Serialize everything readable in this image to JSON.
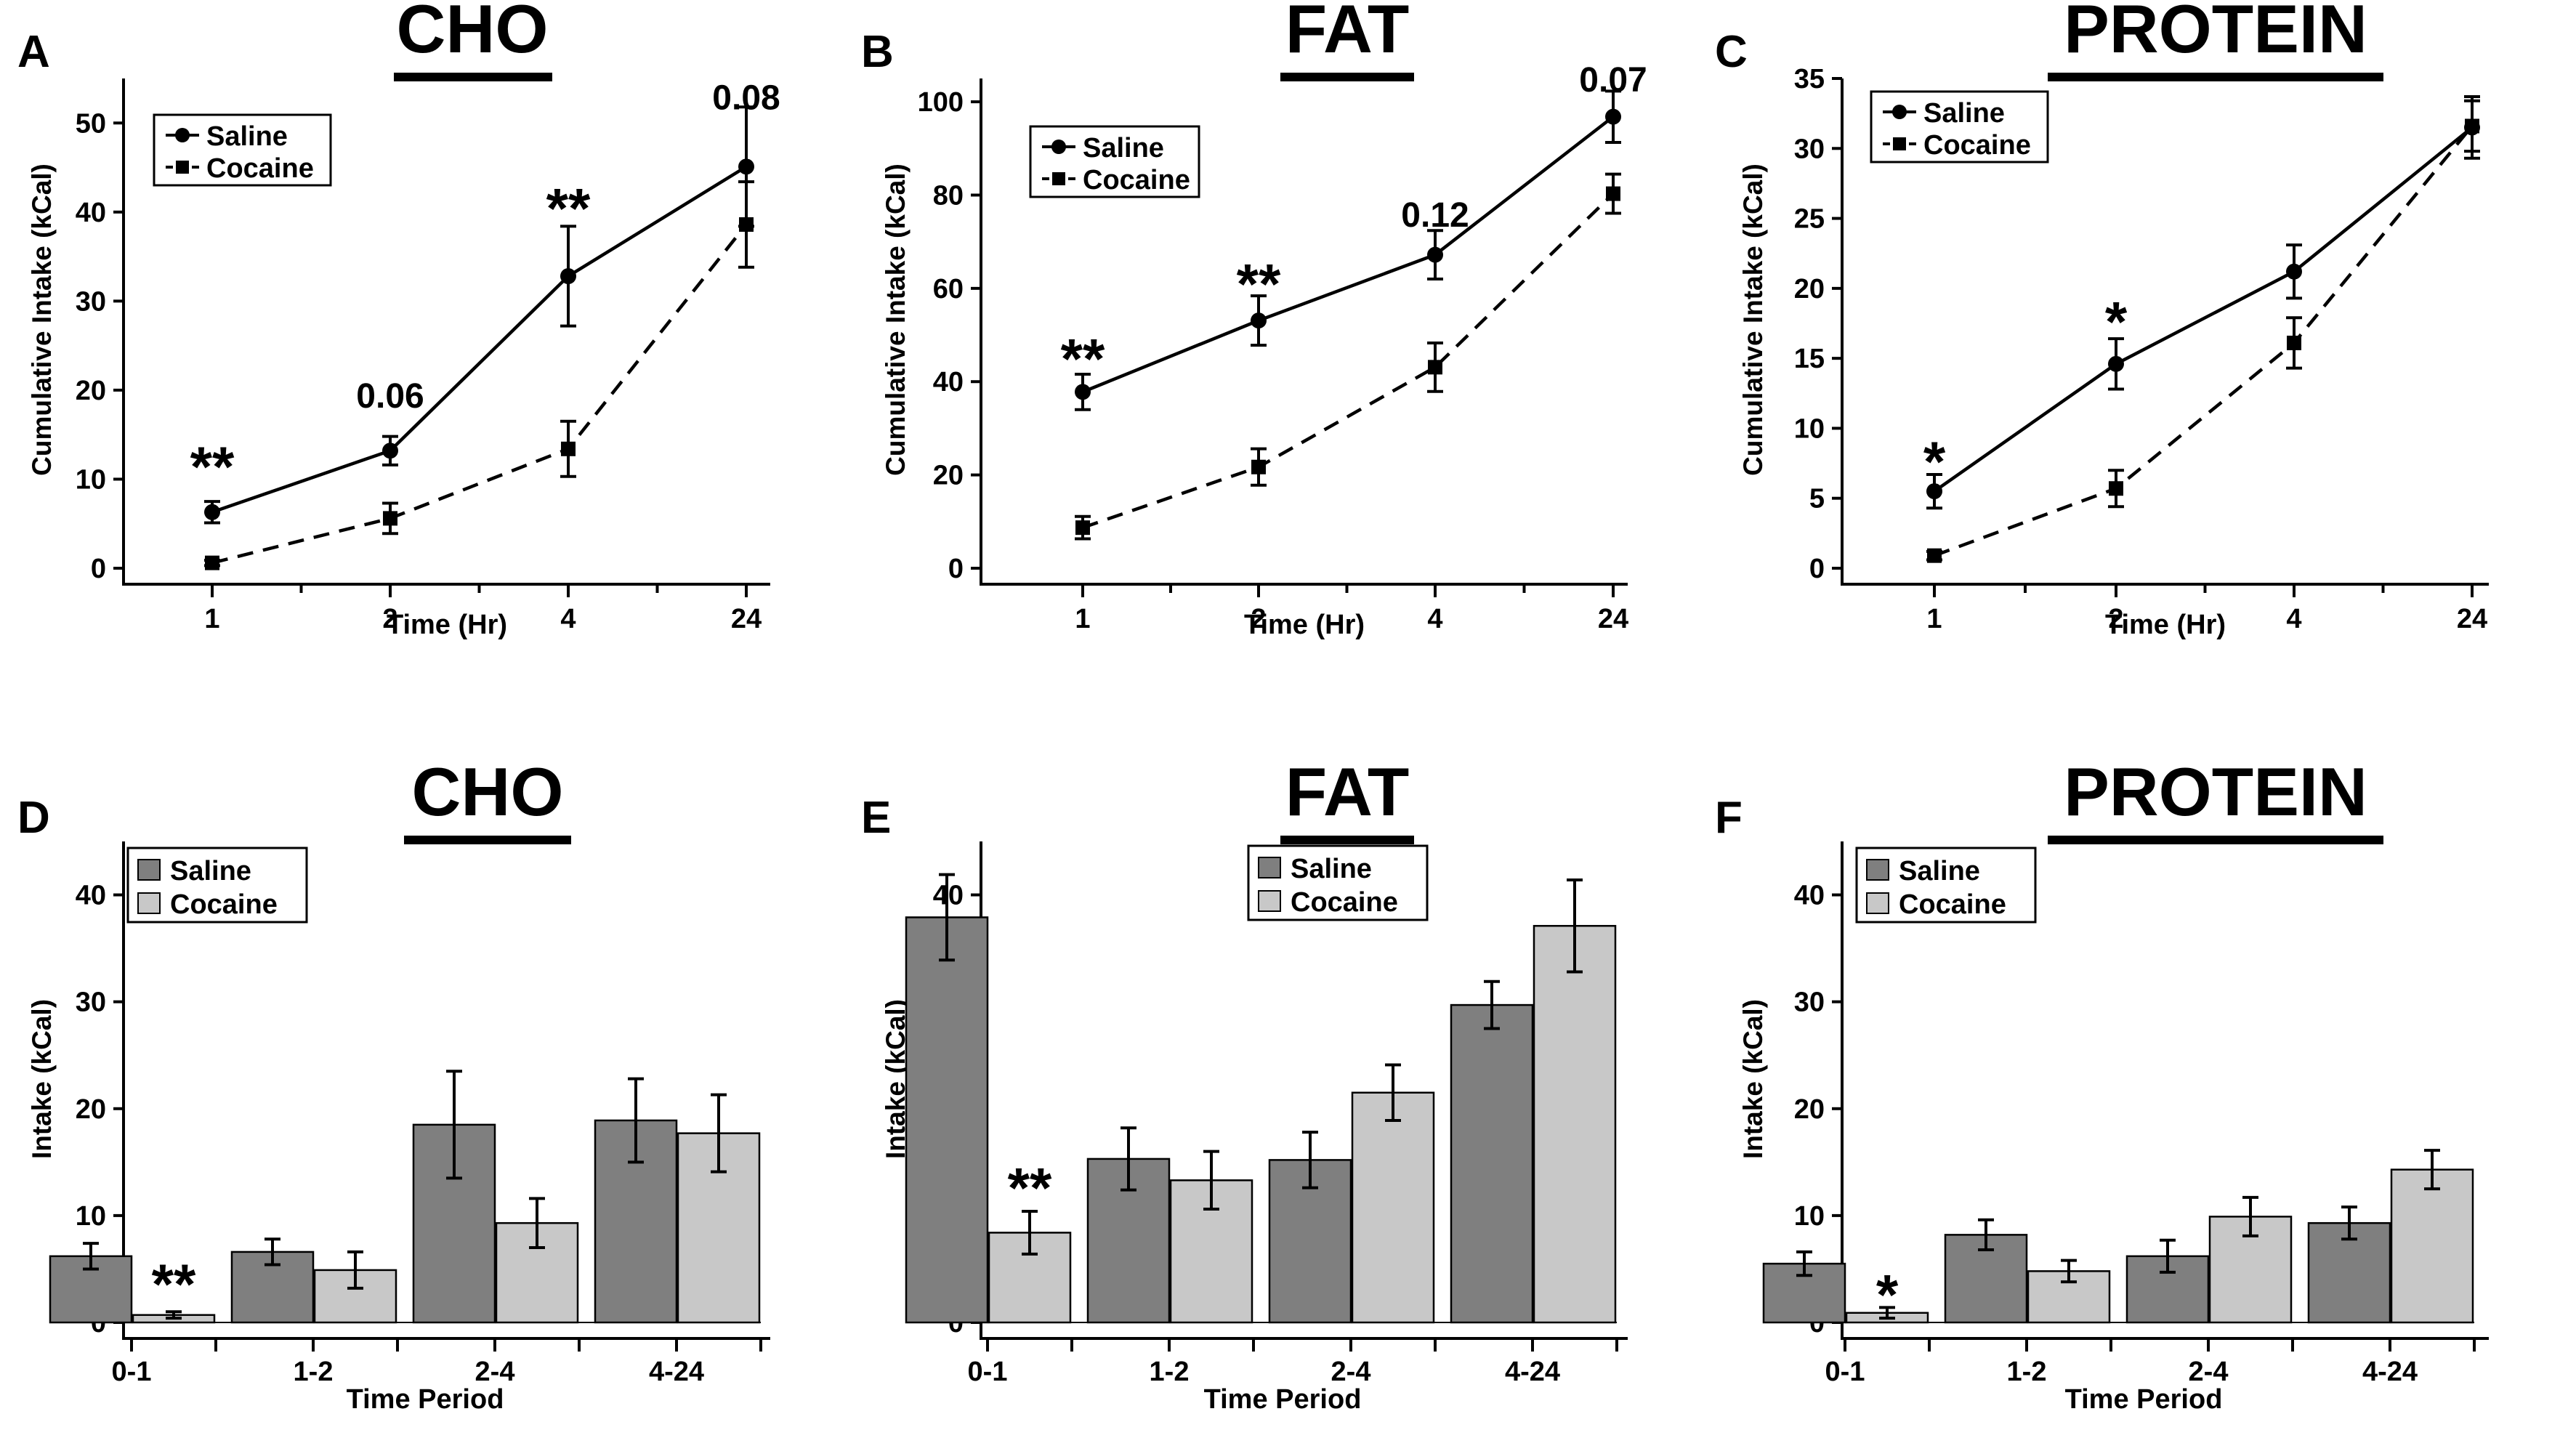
{
  "colors": {
    "saline_bar": "#7f7f7f",
    "cocaine_bar": "#c8c8c8",
    "ink": "#000000"
  },
  "chart_data": [
    {
      "panel_letter": "A",
      "title": "CHO",
      "type": "line",
      "xlabel": "Time (Hr)",
      "ylabel": "Cumulative Intake (kCal)",
      "categories": [
        "1",
        "2",
        "4",
        "24"
      ],
      "ylim": [
        0,
        55
      ],
      "yticks": [
        0,
        10,
        20,
        30,
        40,
        50
      ],
      "legend": {
        "position": "top-left",
        "entries": [
          "Saline",
          "Cocaine"
        ]
      },
      "series": [
        {
          "name": "Saline",
          "style": "solid-circle",
          "values": [
            6.3,
            13.2,
            32.8,
            45.1
          ],
          "errors": [
            1.2,
            1.6,
            5.6,
            6.7
          ]
        },
        {
          "name": "Cocaine",
          "style": "dashed-square",
          "values": [
            0.6,
            5.6,
            13.4,
            38.6
          ],
          "errors": [
            0.3,
            1.7,
            3.1,
            4.8
          ]
        }
      ],
      "annotations": [
        {
          "category": "1",
          "text": "**",
          "kind": "star",
          "y": 12.5
        },
        {
          "category": "2",
          "text": "0.06",
          "kind": "label",
          "y": 19.5
        },
        {
          "category": "4",
          "text": "**",
          "kind": "star",
          "y": 41.5
        },
        {
          "category": "24",
          "text": "0.08",
          "kind": "label",
          "y": 53
        }
      ]
    },
    {
      "panel_letter": "B",
      "title": "FAT",
      "type": "line",
      "xlabel": "Time (Hr)",
      "ylabel": "Cumulative Intake (kCal)",
      "categories": [
        "1",
        "2",
        "4",
        "24"
      ],
      "ylim": [
        0,
        105
      ],
      "yticks": [
        0,
        20,
        40,
        60,
        80,
        100
      ],
      "legend": {
        "position": "top-left",
        "entries": [
          "Saline",
          "Cocaine"
        ]
      },
      "series": [
        {
          "name": "Saline",
          "style": "solid-circle",
          "values": [
            37.8,
            53.1,
            67.2,
            96.8
          ],
          "errors": [
            3.8,
            5.3,
            5.2,
            5.5
          ]
        },
        {
          "name": "Cocaine",
          "style": "dashed-square",
          "values": [
            8.7,
            21.7,
            43.1,
            80.3
          ],
          "errors": [
            2.4,
            3.9,
            5.2,
            4.2
          ]
        }
      ],
      "annotations": [
        {
          "category": "1",
          "text": "**",
          "kind": "star",
          "y": 47
        },
        {
          "category": "2",
          "text": "**",
          "kind": "star",
          "y": 63
        },
        {
          "category": "4",
          "text": "0.12",
          "kind": "label",
          "y": 76
        },
        {
          "category": "24",
          "text": "0.07",
          "kind": "label",
          "y": 105
        }
      ]
    },
    {
      "panel_letter": "C",
      "title": "PROTEIN",
      "type": "line",
      "xlabel": "Time (Hr)",
      "ylabel": "Cumulative Intake (kCal)",
      "categories": [
        "1",
        "2",
        "4",
        "24"
      ],
      "ylim": [
        0,
        35
      ],
      "yticks": [
        0,
        5,
        10,
        15,
        20,
        25,
        30,
        35
      ],
      "legend": {
        "position": "top-left",
        "entries": [
          "Saline",
          "Cocaine"
        ]
      },
      "series": [
        {
          "name": "Saline",
          "style": "solid-circle",
          "values": [
            5.5,
            14.6,
            21.2,
            31.5
          ],
          "errors": [
            1.2,
            1.8,
            1.9,
            2.2
          ]
        },
        {
          "name": "Cocaine",
          "style": "dashed-square",
          "values": [
            0.9,
            5.7,
            16.1,
            31.6
          ],
          "errors": [
            0.3,
            1.3,
            1.8,
            1.8
          ]
        }
      ],
      "annotations": [
        {
          "category": "1",
          "text": "*",
          "kind": "star",
          "y": 8.3
        },
        {
          "category": "2",
          "text": "*",
          "kind": "star",
          "y": 18.3
        }
      ]
    },
    {
      "panel_letter": "D",
      "title": "CHO",
      "type": "bar",
      "xlabel": "Time Period",
      "ylabel": "Intake (kCal)",
      "categories": [
        "0-1",
        "1-2",
        "2-4",
        "4-24"
      ],
      "ylim": [
        0,
        45
      ],
      "yticks": [
        0,
        10,
        20,
        30,
        40
      ],
      "legend": {
        "position": "top-left",
        "entries": [
          "Saline",
          "Cocaine"
        ]
      },
      "series": [
        {
          "name": "Saline",
          "values": [
            6.2,
            6.6,
            18.5,
            18.9
          ],
          "errors": [
            1.2,
            1.2,
            5.0,
            3.9
          ]
        },
        {
          "name": "Cocaine",
          "values": [
            0.7,
            4.9,
            9.3,
            17.7
          ],
          "errors": [
            0.3,
            1.7,
            2.3,
            3.6
          ]
        }
      ],
      "annotations": [
        {
          "category": "0-1",
          "series": "Cocaine",
          "text": "**",
          "kind": "star",
          "y": 4.5
        }
      ]
    },
    {
      "panel_letter": "E",
      "title": "FAT",
      "type": "bar",
      "xlabel": "Time Period",
      "ylabel": "Intake (kCal)",
      "categories": [
        "0-1",
        "1-2",
        "2-4",
        "4-24"
      ],
      "ylim": [
        0,
        45
      ],
      "yticks": [
        0,
        10,
        20,
        30,
        40
      ],
      "legend": {
        "position": "top-right",
        "entries": [
          "Saline",
          "Cocaine"
        ]
      },
      "series": [
        {
          "name": "Saline",
          "values": [
            37.9,
            15.3,
            15.2,
            29.7
          ],
          "errors": [
            4.0,
            2.9,
            2.6,
            2.2
          ]
        },
        {
          "name": "Cocaine",
          "values": [
            8.4,
            13.3,
            21.5,
            37.1
          ],
          "errors": [
            2.0,
            2.7,
            2.6,
            4.3
          ]
        }
      ],
      "annotations": [
        {
          "category": "0-1",
          "series": "Cocaine",
          "text": "**",
          "kind": "star",
          "y": 13.5
        }
      ]
    },
    {
      "panel_letter": "F",
      "title": "PROTEIN",
      "type": "bar",
      "xlabel": "Time Period",
      "ylabel": "Intake (kCal)",
      "categories": [
        "0-1",
        "1-2",
        "2-4",
        "4-24"
      ],
      "ylim": [
        0,
        45
      ],
      "yticks": [
        0,
        10,
        20,
        30,
        40
      ],
      "legend": {
        "position": "top-left",
        "entries": [
          "Saline",
          "Cocaine"
        ]
      },
      "series": [
        {
          "name": "Saline",
          "values": [
            5.5,
            8.2,
            6.2,
            9.3
          ],
          "errors": [
            1.1,
            1.4,
            1.5,
            1.5
          ]
        },
        {
          "name": "Cocaine",
          "values": [
            0.9,
            4.8,
            9.9,
            14.3
          ],
          "errors": [
            0.5,
            1.0,
            1.8,
            1.8
          ]
        }
      ],
      "annotations": [
        {
          "category": "0-1",
          "series": "Cocaine",
          "text": "*",
          "kind": "star",
          "y": 3.5
        }
      ]
    }
  ]
}
